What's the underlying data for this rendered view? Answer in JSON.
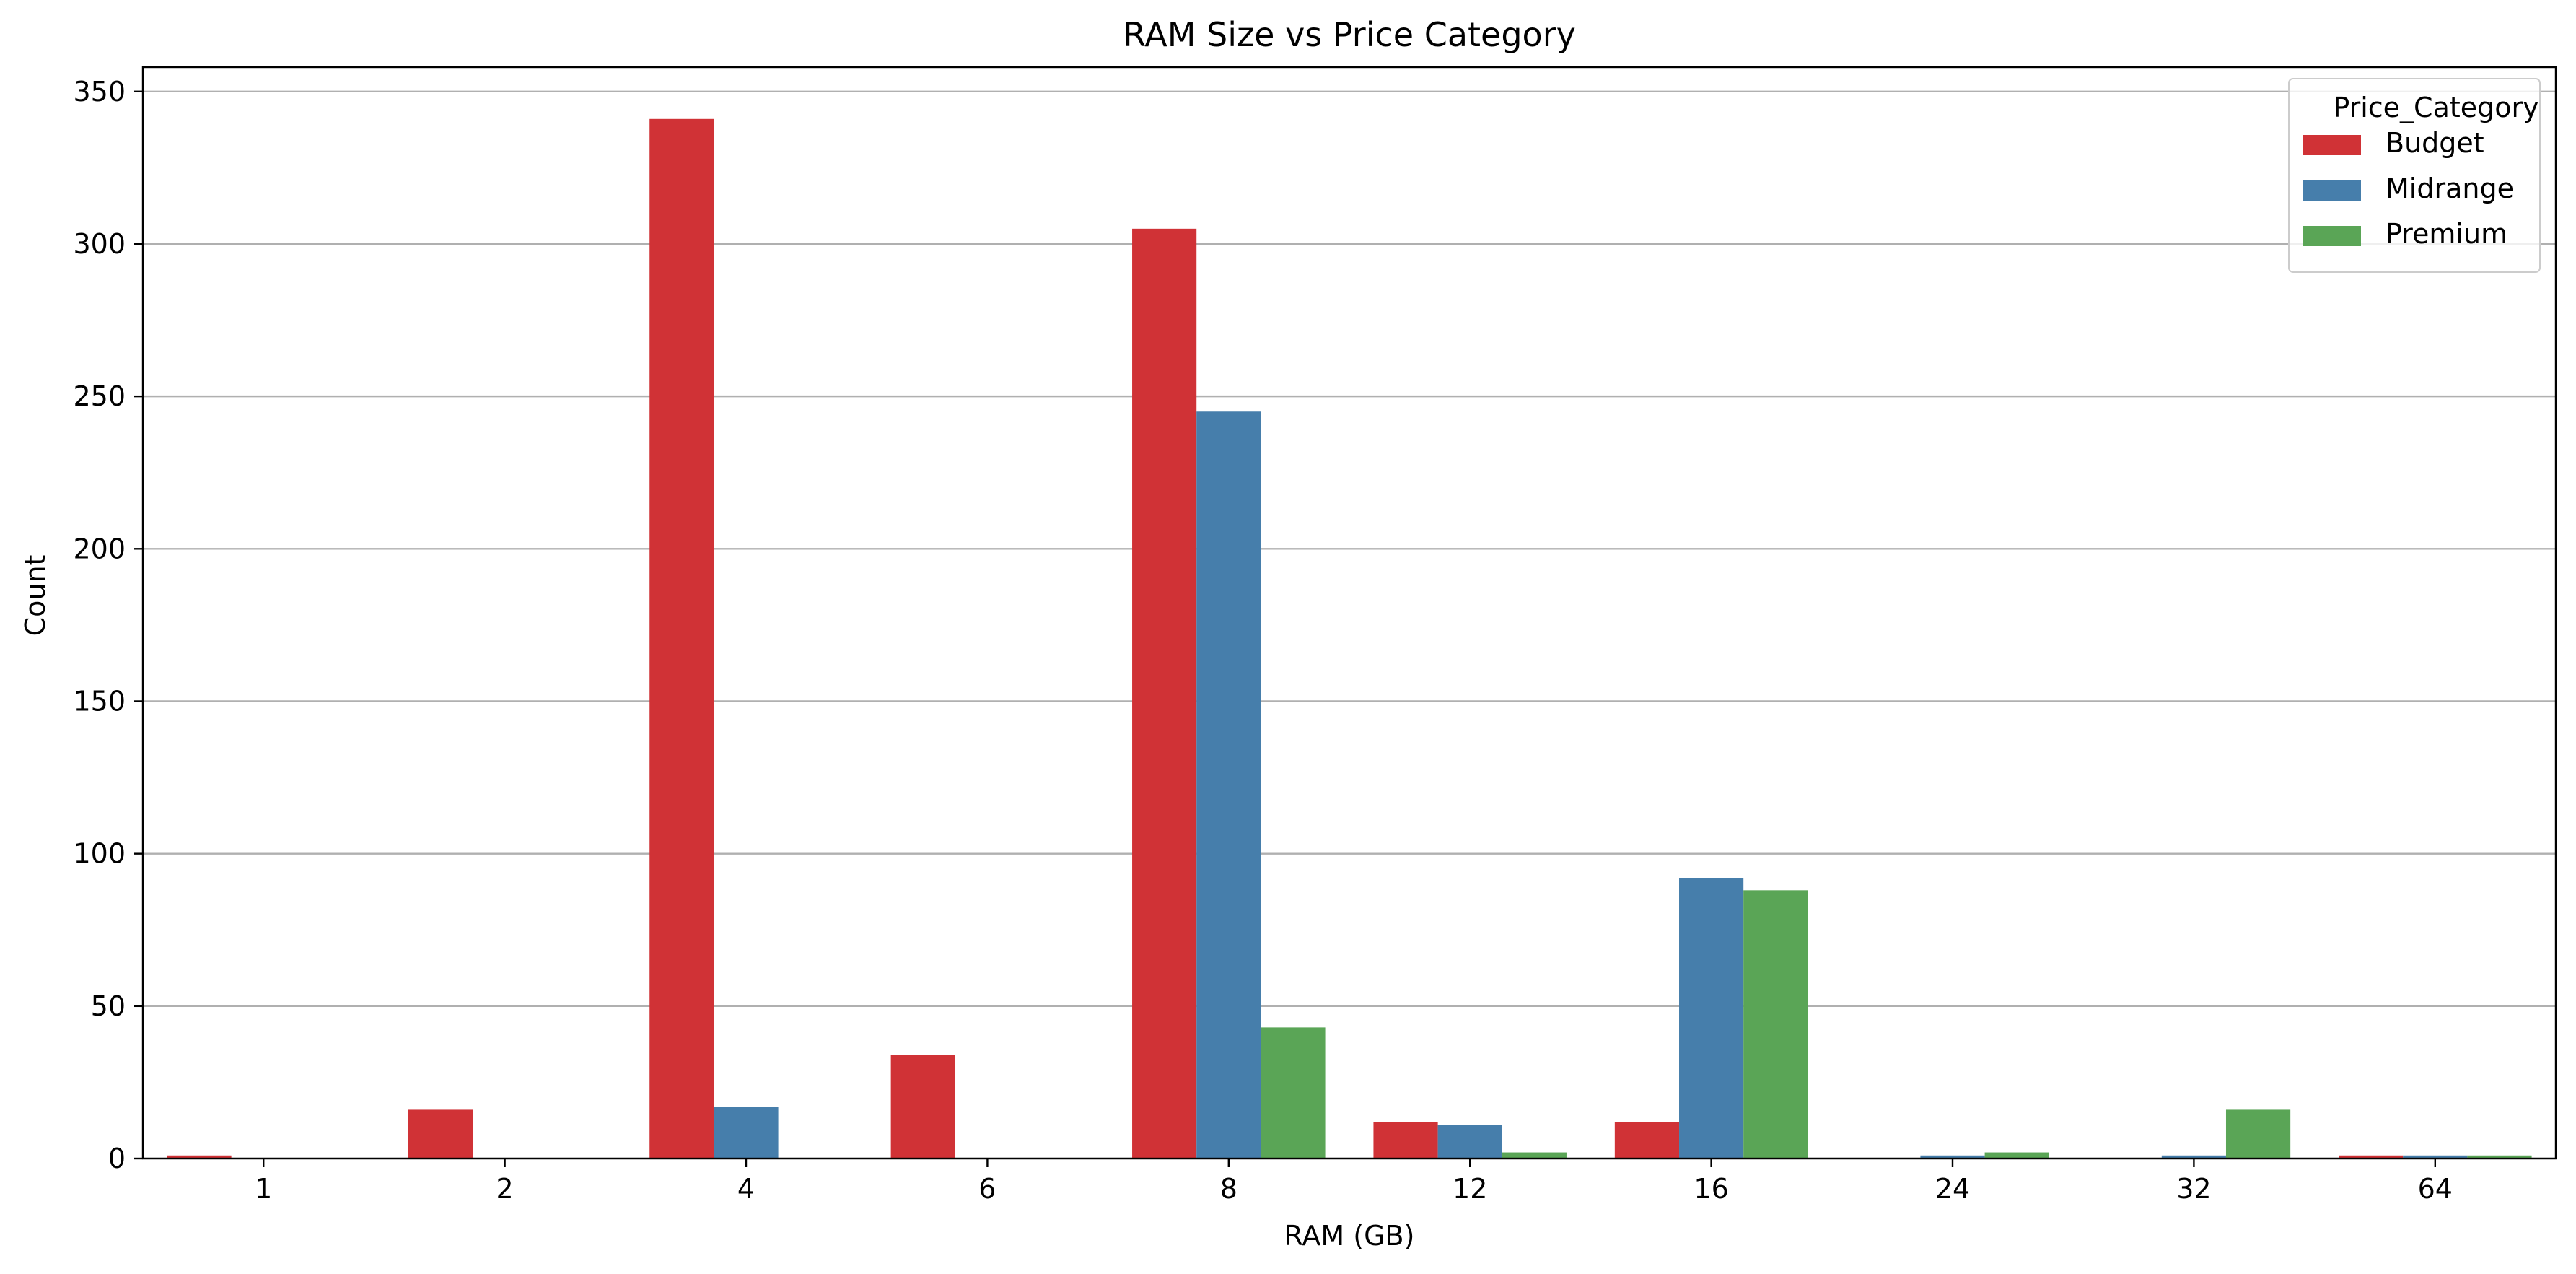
{
  "chart_data": {
    "type": "bar",
    "title": "RAM Size vs Price Category",
    "xlabel": "RAM (GB)",
    "ylabel": "Count",
    "categories": [
      "1",
      "2",
      "4",
      "6",
      "8",
      "12",
      "16",
      "24",
      "32",
      "64"
    ],
    "series": [
      {
        "name": "Budget",
        "color": "#d03236",
        "values": [
          1,
          16,
          341,
          34,
          305,
          12,
          12,
          0,
          0,
          1
        ]
      },
      {
        "name": "Midrange",
        "color": "#467eab",
        "values": [
          0,
          0,
          17,
          0,
          245,
          11,
          92,
          1,
          1,
          1
        ]
      },
      {
        "name": "Premium",
        "color": "#5aa556",
        "values": [
          0,
          0,
          0,
          0,
          43,
          2,
          88,
          2,
          16,
          1
        ]
      }
    ],
    "ylim": [
      0,
      358
    ],
    "yticks": [
      0,
      50,
      100,
      150,
      200,
      250,
      300,
      350
    ],
    "grid": "y",
    "legend": {
      "title": "Price_Category",
      "placement": "top-right"
    }
  }
}
